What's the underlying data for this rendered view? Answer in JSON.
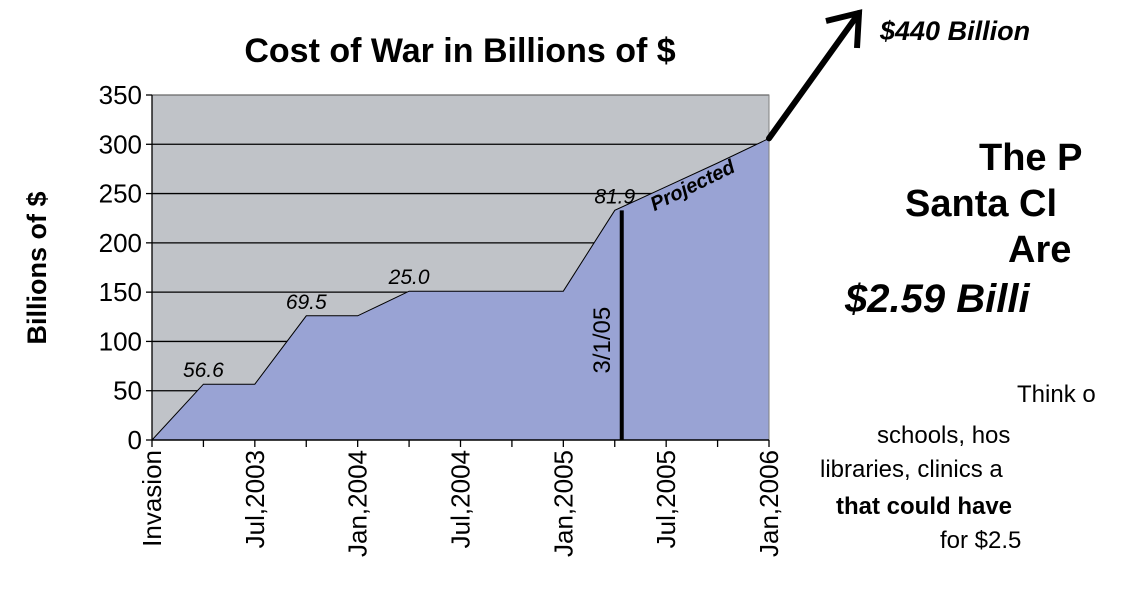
{
  "chart_data": {
    "type": "area",
    "title": "Cost of War in Billions of $",
    "ylabel": "Billions of $",
    "xlabel": "",
    "ylim": [
      0,
      350
    ],
    "y_ticks": [
      "0",
      "50",
      "100",
      "150",
      "200",
      "250",
      "300",
      "350"
    ],
    "y_tick_values": [
      0,
      50,
      100,
      150,
      200,
      250,
      300,
      350
    ],
    "x_ticks": [
      "Invasion",
      "Jul,2003",
      "Jan,2004",
      "Jul,2004",
      "Jan,2005",
      "Jul,2005",
      "Jan,2006"
    ],
    "x": [
      "Invasion",
      "Apr,2003",
      "Jul,2003",
      "Oct,2003",
      "Jan,2004",
      "Apr,2004",
      "Jul,2004",
      "Oct,2004",
      "Jan,2005",
      "Apr,2005",
      "Jul,2005",
      "Oct,2005",
      "Jan,2006"
    ],
    "series": [
      {
        "values": [
          0,
          56.6,
          56.6,
          126,
          126,
          151,
          151,
          151,
          151,
          233,
          257,
          281,
          306
        ]
      }
    ],
    "data_labels": [
      {
        "text": "56.6",
        "x": "Apr,2003",
        "y": 56.6
      },
      {
        "text": "69.5",
        "x": "Oct,2003",
        "y": 126
      },
      {
        "text": "25.0",
        "x": "Apr,2004",
        "y": 151
      },
      {
        "text": "81.9",
        "x": "Apr,2005",
        "y": 233
      }
    ],
    "annotations": {
      "projected_label": "Projected",
      "vertical_marker_label": "3/1/05",
      "vertical_marker_x": "Apr,2005",
      "vertical_marker_value": 233,
      "projected_total": "$440 Billion"
    },
    "grid": true,
    "legend": "none",
    "colors": {
      "plot_background": "#c0c3c8",
      "area_fill": "#99a3d4",
      "gridline": "#000000",
      "marker_line": "#000000"
    }
  },
  "side_text": {
    "headline": [
      "The P",
      "Santa Cl",
      "Are"
    ],
    "amount": "$2.59 Billi",
    "body": [
      "Think o",
      "schools, hos",
      "libraries, clinics a"
    ],
    "body_bold": "that could have",
    "body_last": "for $2.5"
  }
}
